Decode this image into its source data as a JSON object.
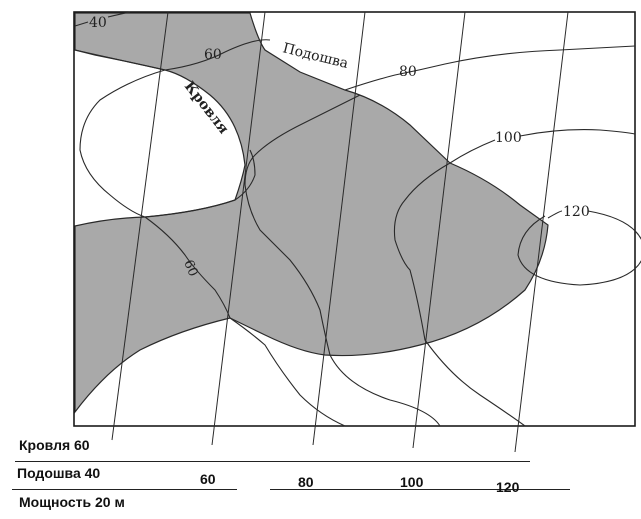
{
  "map": {
    "labels": {
      "roof_curve": "Кровля",
      "floor_curve": "Подошва",
      "iso_40": "40",
      "iso_60_top": "60",
      "iso_60_left": "60",
      "iso_80": "80",
      "iso_100": "100",
      "iso_120": "120"
    },
    "colors": {
      "fill": "#a9a9a9",
      "line": "#2a2a2a",
      "frame": "#1a1a1a"
    }
  },
  "legend": {
    "roof": "Кровля 60",
    "floor": "Подошва 40",
    "thickness": "Мощность 20 м"
  },
  "scale": {
    "ticks": [
      "60",
      "80",
      "100",
      "120"
    ]
  }
}
